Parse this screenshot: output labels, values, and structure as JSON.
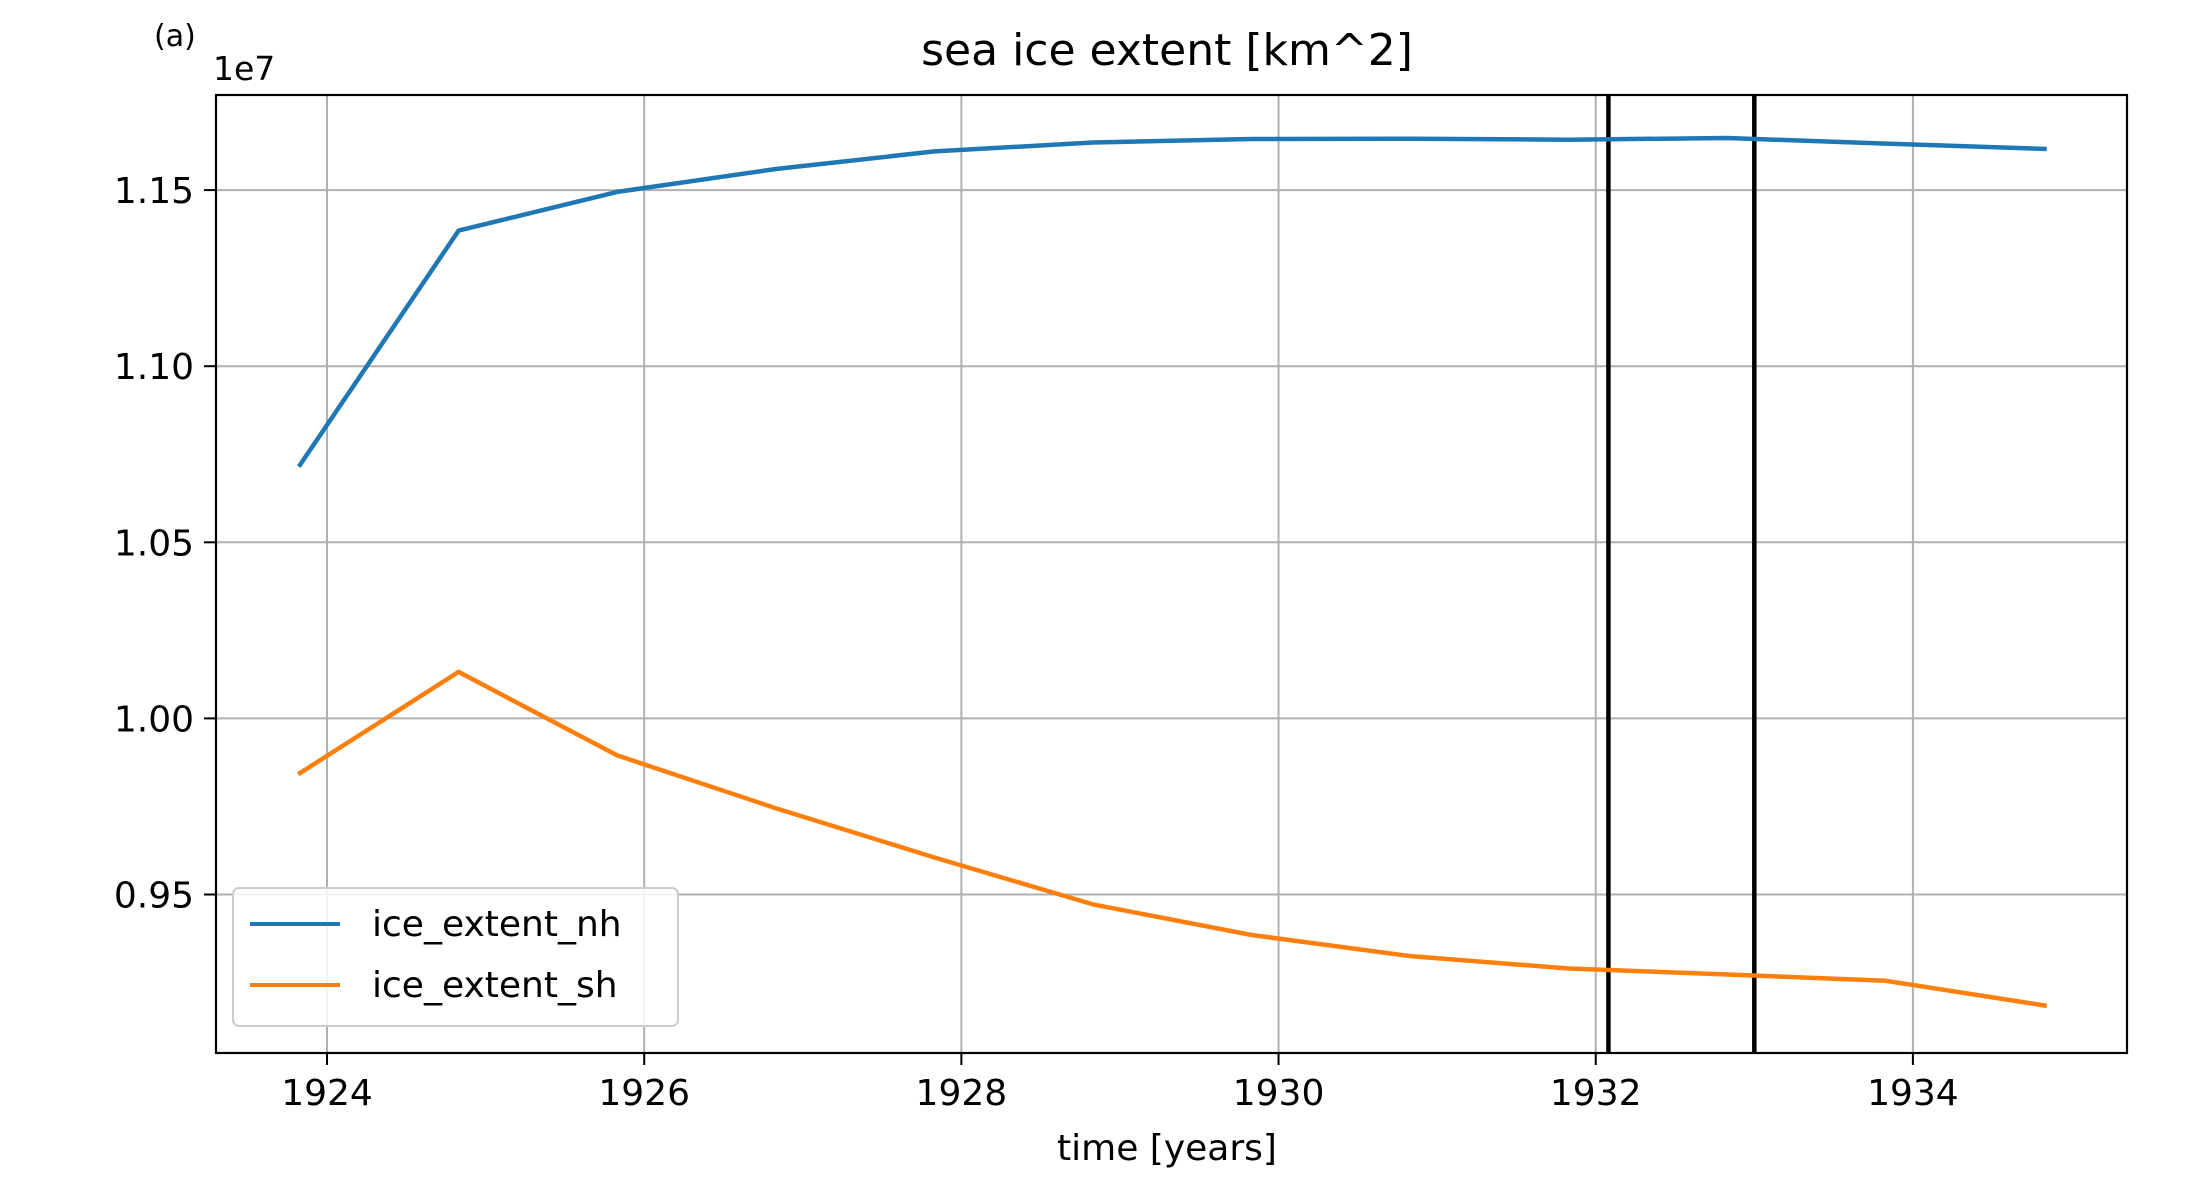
{
  "panel_label": "(a)",
  "chart_data": {
    "type": "line",
    "title": "sea ice extent [km^2]",
    "xlabel": "time [years]",
    "ylabel": "",
    "offset_label": "1e7",
    "xlim": [
      1923.3,
      1935.35
    ],
    "ylim": [
      9.05,
      11.77
    ],
    "scale_factor": 10000000,
    "x_ticks": [
      1924,
      1926,
      1928,
      1930,
      1932,
      1934
    ],
    "x_tick_labels": [
      "1924",
      "1926",
      "1928",
      "1930",
      "1932",
      "1934"
    ],
    "y_ticks": [
      9.5,
      10.0,
      10.5,
      11.0,
      11.5
    ],
    "y_tick_labels": [
      "0.95",
      "1.00",
      "1.05",
      "1.10",
      "1.15"
    ],
    "grid": true,
    "legend_position": "lower-left",
    "vertical_lines": [
      1932.08,
      1933.0
    ],
    "x": [
      1923.83,
      1924.83,
      1925.83,
      1926.83,
      1927.83,
      1928.83,
      1929.83,
      1930.83,
      1931.83,
      1932.83,
      1933.83,
      1934.83
    ],
    "series": [
      {
        "name": "ice_extent_nh",
        "color": "#1f77b4",
        "values": [
          10.72,
          11.385,
          11.495,
          11.56,
          11.61,
          11.635,
          11.645,
          11.646,
          11.643,
          11.648,
          11.632,
          11.617
        ]
      },
      {
        "name": "ice_extent_sh",
        "color": "#ff7f0e",
        "values": [
          9.845,
          10.132,
          9.895,
          9.745,
          9.605,
          9.472,
          9.385,
          9.325,
          9.29,
          9.273,
          9.255,
          9.185
        ]
      }
    ]
  }
}
